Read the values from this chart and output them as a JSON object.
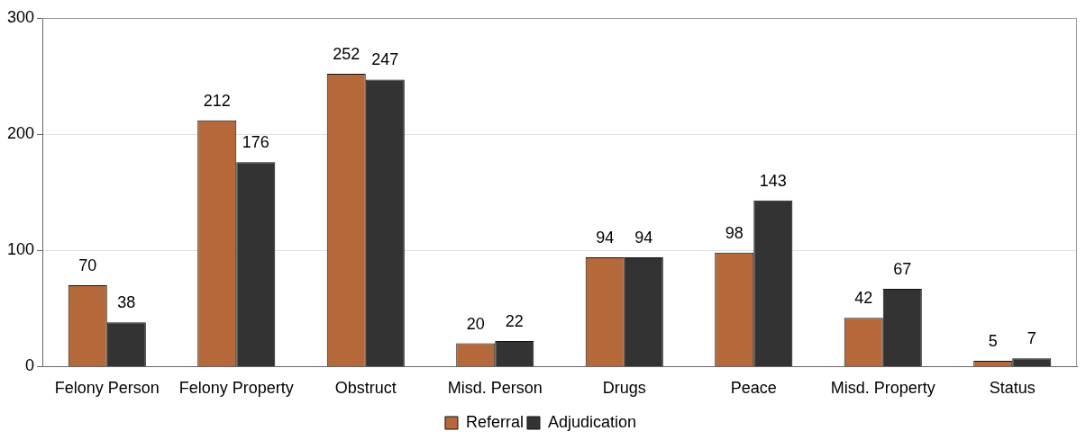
{
  "chart_data": {
    "type": "bar",
    "categories": [
      "Felony Person",
      "Felony Property",
      "Obstruct",
      "Misd. Person",
      "Drugs",
      "Peace",
      "Misd. Property",
      "Status"
    ],
    "series": [
      {
        "name": "Referral",
        "color": "#b5683a",
        "values": [
          70,
          212,
          252,
          20,
          94,
          98,
          42,
          5
        ]
      },
      {
        "name": "Adjudication",
        "color": "#333333",
        "values": [
          38,
          176,
          247,
          22,
          94,
          143,
          67,
          7
        ]
      }
    ],
    "ylim": [
      0,
      300
    ],
    "yticks": [
      0,
      100,
      200,
      300
    ],
    "grid": "y",
    "legend": "bottom",
    "data_labels": true
  }
}
